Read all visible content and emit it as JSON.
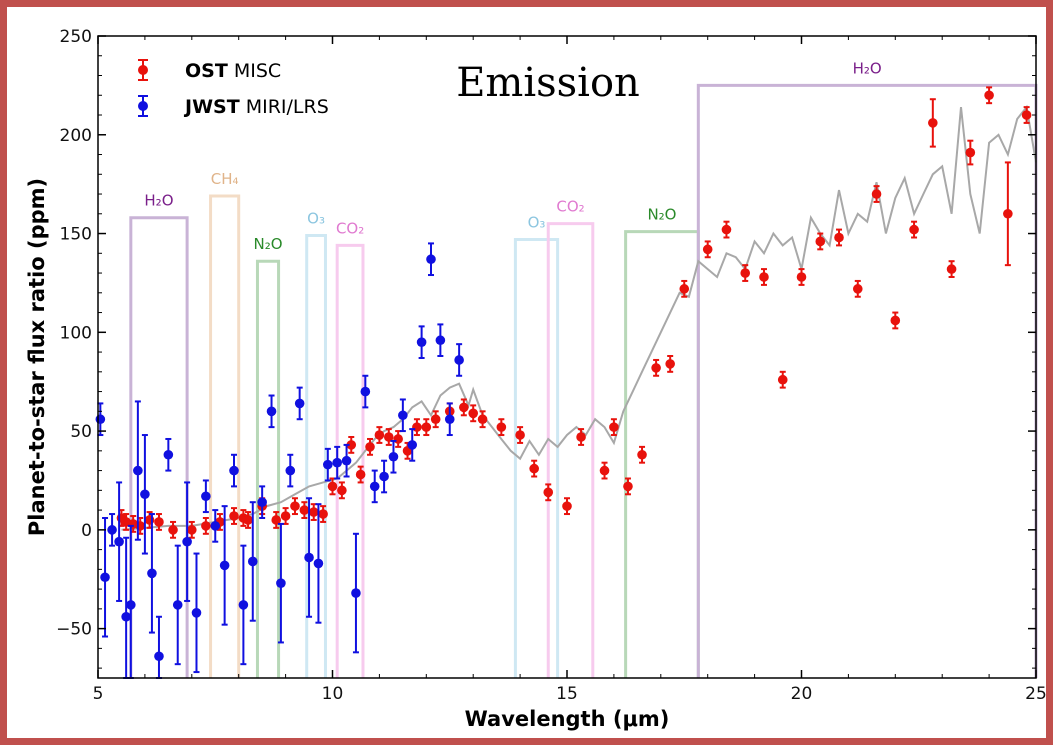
{
  "chart_data": {
    "type": "scatter",
    "title": "Emission",
    "xlabel": "Wavelength (μm)",
    "ylabel": "Planet-to-star flux ratio (ppm)",
    "xlim": [
      5,
      25
    ],
    "ylim": [
      -75,
      250
    ],
    "xticks": [
      "5",
      "10",
      "15",
      "20",
      "25"
    ],
    "yticks": [
      "−50",
      "0",
      "50",
      "100",
      "150",
      "200",
      "250"
    ],
    "legend": {
      "position": "top-left",
      "entries": [
        {
          "bold": "OST",
          "rest": " MISC",
          "color": "#e8120c"
        },
        {
          "bold": "JWST",
          "rest": " MIRI/LRS",
          "color": "#1010e0"
        }
      ]
    },
    "bands": [
      {
        "label": "H₂O",
        "x0": 5.7,
        "x1": 6.9,
        "top": 158,
        "color": "#c9b3d6",
        "text_color": "#7a1f8a"
      },
      {
        "label": "CH₄",
        "x0": 7.4,
        "x1": 8.0,
        "top": 169,
        "color": "#f3dcc6",
        "text_color": "#e0b48a"
      },
      {
        "label": "N₂O",
        "x0": 8.4,
        "x1": 8.85,
        "top": 136,
        "color": "#b8d8b8",
        "text_color": "#2a8a2a"
      },
      {
        "label": "O₃",
        "x0": 9.45,
        "x1": 9.85,
        "top": 149,
        "color": "#cfe8f3",
        "text_color": "#8cc6e0"
      },
      {
        "label": "CO₂",
        "x0": 10.1,
        "x1": 10.65,
        "top": 144,
        "color": "#f7cbee",
        "text_color": "#e07ad0"
      },
      {
        "label": "O₃",
        "x0": 13.9,
        "x1": 14.8,
        "top": 147,
        "color": "#cfe8f3",
        "text_color": "#8cc6e0"
      },
      {
        "label": "CO₂",
        "x0": 14.6,
        "x1": 15.55,
        "top": 155,
        "color": "#f7cbee",
        "text_color": "#e07ad0"
      },
      {
        "label": "N₂O",
        "x0": 16.25,
        "x1": 17.8,
        "top": 151,
        "color": "#b8d8b8",
        "text_color": "#2a8a2a"
      },
      {
        "label": "H₂O",
        "x0": 17.8,
        "x1": 25.0,
        "top": 225,
        "color": "#c9b3d6",
        "text_color": "#7a1f8a"
      }
    ],
    "series": [
      {
        "marker": "line",
        "color": "#a8a8a8",
        "x": [
          5.5,
          6.0,
          6.5,
          7.0,
          7.5,
          8.0,
          8.3,
          8.6,
          8.9,
          9.2,
          9.5,
          9.8,
          10.1,
          10.3,
          10.5,
          10.7,
          10.9,
          11.1,
          11.3,
          11.5,
          11.7,
          11.9,
          12.1,
          12.3,
          12.5,
          12.7,
          12.9,
          13.0,
          13.2,
          13.4,
          13.6,
          13.8,
          14.0,
          14.2,
          14.4,
          14.6,
          14.8,
          15.0,
          15.2,
          15.4,
          15.6,
          15.8,
          16.0,
          16.2,
          16.4,
          16.6,
          16.8,
          17.0,
          17.2,
          17.4,
          17.6,
          17.8,
          18.0,
          18.2,
          18.4,
          18.6,
          18.8,
          19.0,
          19.2,
          19.4,
          19.6,
          19.8,
          20.0,
          20.2,
          20.4,
          20.6,
          20.8,
          21.0,
          21.2,
          21.4,
          21.6,
          21.8,
          22.0,
          22.2,
          22.4,
          22.6,
          22.8,
          23.0,
          23.2,
          23.4,
          23.6,
          23.8,
          24.0,
          24.2,
          24.4,
          24.6,
          24.8,
          25.0
        ],
        "y": [
          0,
          1,
          2,
          2,
          4,
          6,
          8,
          12,
          14,
          18,
          22,
          24,
          26,
          30,
          34,
          40,
          46,
          50,
          52,
          56,
          62,
          65,
          58,
          68,
          72,
          74,
          63,
          71,
          58,
          52,
          46,
          40,
          36,
          45,
          38,
          46,
          42,
          48,
          52,
          48,
          56,
          52,
          44,
          60,
          70,
          80,
          90,
          100,
          110,
          120,
          118,
          136,
          132,
          128,
          140,
          138,
          132,
          146,
          140,
          150,
          144,
          148,
          132,
          158,
          150,
          144,
          172,
          150,
          160,
          156,
          176,
          150,
          168,
          178,
          160,
          170,
          180,
          184,
          160,
          214,
          170,
          150,
          196,
          200,
          190,
          208,
          214,
          186
        ]
      },
      {
        "name": "OST MISC",
        "marker": "dot",
        "color": "#e8120c",
        "x": [
          5.5,
          5.6,
          5.75,
          5.9,
          6.1,
          6.3,
          6.6,
          7.0,
          7.3,
          7.6,
          7.9,
          8.1,
          8.2,
          8.5,
          8.8,
          9.0,
          9.2,
          9.4,
          9.6,
          9.8,
          10.0,
          10.2,
          10.4,
          10.6,
          10.8,
          11.0,
          11.2,
          11.4,
          11.6,
          11.8,
          12.0,
          12.2,
          12.5,
          12.8,
          13.0,
          13.2,
          13.6,
          14.0,
          14.3,
          14.6,
          15.0,
          15.3,
          15.8,
          16.0,
          16.3,
          16.6,
          16.9,
          17.2,
          17.5,
          18.0,
          18.4,
          18.8,
          19.2,
          19.6,
          20.0,
          20.4,
          20.8,
          21.2,
          21.6,
          22.0,
          22.4,
          22.8,
          23.2,
          23.6,
          24.0,
          24.4,
          24.8
        ],
        "y": [
          6,
          4,
          3,
          2,
          5,
          4,
          0,
          0,
          2,
          4,
          7,
          6,
          5,
          12,
          5,
          7,
          12,
          10,
          9,
          8,
          22,
          20,
          43,
          28,
          42,
          48,
          47,
          46,
          40,
          52,
          52,
          56,
          60,
          62,
          59,
          56,
          52,
          48,
          31,
          19,
          12,
          47,
          30,
          52,
          22,
          38,
          82,
          84,
          122,
          142,
          152,
          130,
          128,
          76,
          128,
          146,
          148,
          122,
          170,
          106,
          152,
          206,
          132,
          191,
          220,
          160,
          210
        ],
        "err": [
          4,
          4,
          4,
          4,
          4,
          4,
          4,
          4,
          4,
          4,
          4,
          4,
          4,
          4,
          4,
          4,
          4,
          4,
          4,
          4,
          4,
          4,
          4,
          4,
          4,
          4,
          4,
          4,
          4,
          4,
          4,
          4,
          4,
          4,
          4,
          4,
          4,
          4,
          4,
          4,
          4,
          4,
          4,
          4,
          4,
          4,
          4,
          4,
          4,
          4,
          4,
          4,
          4,
          4,
          4,
          4,
          4,
          4,
          4,
          4,
          4,
          12,
          4,
          6,
          4,
          26,
          4
        ]
      },
      {
        "name": "JWST MIRI/LRS",
        "marker": "dot",
        "color": "#1010e0",
        "x": [
          5.05,
          5.15,
          5.3,
          5.45,
          5.6,
          5.7,
          5.85,
          6.0,
          6.15,
          6.3,
          6.5,
          6.7,
          6.9,
          7.1,
          7.3,
          7.5,
          7.7,
          7.9,
          8.1,
          8.3,
          8.5,
          8.7,
          8.9,
          9.1,
          9.3,
          9.5,
          9.7,
          9.9,
          10.1,
          10.3,
          10.5,
          10.7,
          10.9,
          11.1,
          11.3,
          11.5,
          11.7,
          11.9,
          12.1,
          12.3,
          12.5,
          12.7
        ],
        "y": [
          56,
          -24,
          0,
          -6,
          -44,
          -38,
          30,
          18,
          -22,
          -64,
          38,
          -38,
          -6,
          -42,
          17,
          2,
          -18,
          30,
          -38,
          -16,
          14,
          60,
          -27,
          30,
          64,
          -14,
          -17,
          33,
          34,
          35,
          -32,
          70,
          22,
          27,
          37,
          58,
          43,
          95,
          137,
          96,
          56,
          86
        ],
        "err": [
          8,
          30,
          8,
          30,
          40,
          40,
          35,
          30,
          30,
          20,
          8,
          30,
          30,
          30,
          8,
          8,
          30,
          8,
          30,
          30,
          8,
          8,
          30,
          8,
          8,
          30,
          30,
          8,
          8,
          8,
          30,
          8,
          8,
          8,
          8,
          8,
          8,
          8,
          8,
          8,
          8,
          8
        ]
      }
    ]
  }
}
